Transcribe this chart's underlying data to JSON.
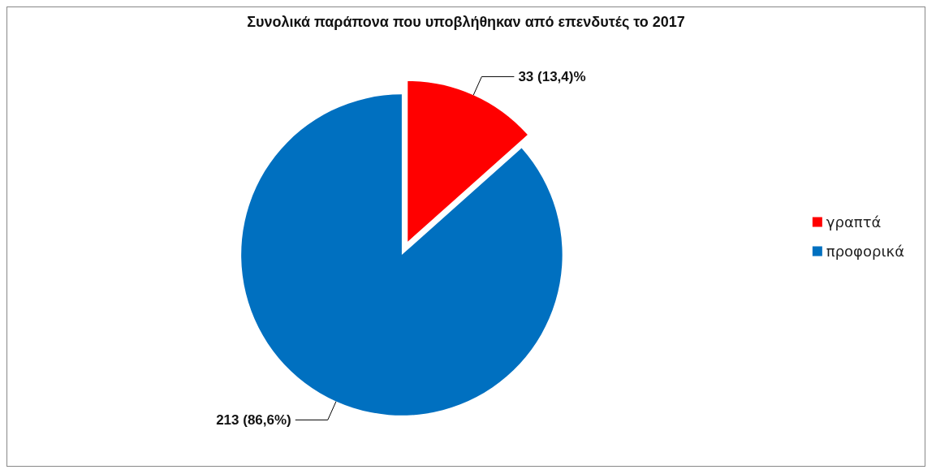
{
  "chart_data": {
    "type": "pie",
    "title": "Συνολικά παράπονα που υποβλήθηκαν από επενδυτές το 2017",
    "categories": [
      "γραπτά",
      "προφορικά"
    ],
    "values": [
      33,
      213
    ],
    "colors": [
      "#ff0000",
      "#0070c0"
    ],
    "value_labels": [
      "33 (13,4)%",
      "213 (86,6%)"
    ],
    "legend": "right"
  }
}
